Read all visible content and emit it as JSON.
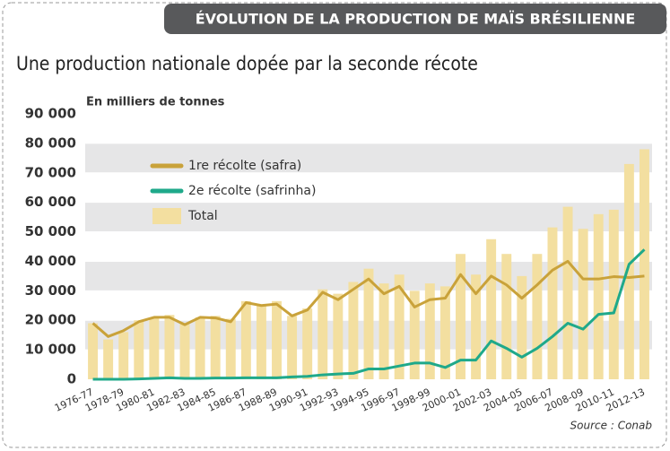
{
  "header": "ÉVOLUTION DE LA PRODUCTION DE MAÏS BRÉSILIENNE",
  "chart_data": {
    "type": "bar_line",
    "title": "Une production nationale dopée par la seconde récote",
    "y_label": "En milliers de tonnes",
    "source": "Source : Conab",
    "categories": [
      "1976-77",
      null,
      "1978-79",
      null,
      "1980-81",
      null,
      "1982-83",
      null,
      "1984-85",
      null,
      "1986-87",
      null,
      "1988-89",
      null,
      "1990-91",
      null,
      "1992-93",
      null,
      "1994-95",
      null,
      "1996-97",
      null,
      "1998-99",
      null,
      "2000-01",
      null,
      "2002-03",
      null,
      "2004-05",
      null,
      "2006-07",
      null,
      "2008-09",
      null,
      "2010-11",
      null,
      "2012-13"
    ],
    "series": [
      {
        "name": "1re récolte (safra)",
        "color": "#c9a23a",
        "kind": "line",
        "values": [
          19000,
          14500,
          16500,
          19500,
          21000,
          21000,
          18500,
          21000,
          20800,
          19500,
          26000,
          25000,
          25500,
          21500,
          23500,
          29500,
          27000,
          30500,
          34000,
          29000,
          31500,
          24500,
          27000,
          27500,
          35500,
          29000,
          35000,
          32000,
          27500,
          32000,
          37000,
          40000,
          34000,
          34000,
          34800,
          34500,
          35000
        ]
      },
      {
        "name": "2e récolte (safrinha)",
        "color": "#1fa98a",
        "kind": "line",
        "values": [
          0,
          0,
          0,
          100,
          300,
          500,
          300,
          300,
          400,
          400,
          500,
          500,
          500,
          800,
          1000,
          1500,
          1800,
          2000,
          3500,
          3500,
          4500,
          5500,
          5500,
          4000,
          6500,
          6500,
          13000,
          10500,
          7500,
          10500,
          14500,
          19000,
          17000,
          22000,
          22500,
          39000,
          44000
        ]
      },
      {
        "name": "Total",
        "color": "#f3dfa0",
        "kind": "bar",
        "values": [
          19000,
          13500,
          16000,
          20000,
          21000,
          21800,
          19000,
          21000,
          21500,
          20500,
          26500,
          25000,
          26500,
          21500,
          24000,
          30500,
          29000,
          33000,
          37500,
          32500,
          35500,
          30000,
          32500,
          31500,
          42500,
          35500,
          47500,
          42500,
          35000,
          42500,
          51500,
          58500,
          51000,
          56000,
          57500,
          73000,
          78000
        ]
      }
    ],
    "ylim": [
      0,
      90000
    ],
    "yticks": [
      0,
      {
        "value": 10000,
        "label": "10 000"
      },
      {
        "value": 20000,
        "label": "20 000"
      },
      {
        "value": 30000,
        "label": "30 000"
      },
      {
        "value": 40000,
        "label": "40 000"
      },
      {
        "value": 50000,
        "label": "50 000"
      },
      {
        "value": 60000,
        "label": "60 000"
      },
      {
        "value": 70000,
        "label": "70 000"
      },
      {
        "value": 80000,
        "label": "80 000"
      },
      {
        "value": 90000,
        "label": "90 000"
      }
    ],
    "grid": "bands"
  }
}
